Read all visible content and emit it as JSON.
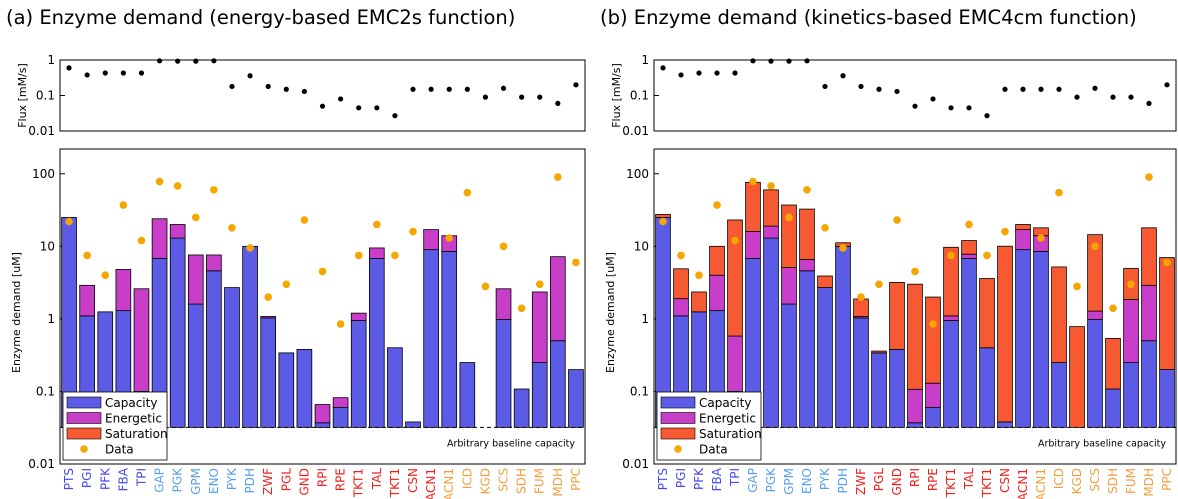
{
  "panels": [
    {
      "title": "(a) Enzyme demand (energy-based EMC2s function)"
    },
    {
      "title": "(b) Enzyme demand (kinetics-based EMC4cm function)"
    }
  ],
  "colors": {
    "capacity": "#5b5be6",
    "energetic": "#c83ec8",
    "saturation": "#f75a32",
    "data": "#f5a700",
    "label_blue": "#4a4ae8",
    "label_lightblue": "#5aa0ee",
    "label_red": "#ee2222",
    "label_orange": "#f0a040"
  },
  "flux_axis": {
    "ylabel": "Flux [mM/s]",
    "ticks": [
      "1",
      "0.1",
      "0.01"
    ]
  },
  "demand_axis": {
    "ylabel": "Enzyme demand [uM]",
    "ticks": [
      "100",
      "10",
      "1",
      "0.1",
      "0.01"
    ]
  },
  "legend": [
    "Capacity",
    "Energetic",
    "Saturation",
    "Data"
  ],
  "baseline_label": "Arbitrary baseline capacity",
  "chart_data": [
    {
      "type": "bar",
      "title": "(a) Enzyme demand (energy-based EMC2s function)",
      "yscale": "log",
      "ylim": [
        0.01,
        150
      ],
      "ylabel": "Enzyme demand [uM]",
      "baseline": 0.032,
      "categories": [
        "PTS",
        "PGI",
        "PFK",
        "FBA",
        "TPI",
        "GAP",
        "PGK",
        "GPM",
        "ENO",
        "PYK",
        "PDH",
        "ZWF",
        "PGL",
        "GND",
        "RPI",
        "RPE",
        "TKT1",
        "TAL",
        "TKT1",
        "CSN",
        "ACN1",
        "ACN1",
        "ICD",
        "KGD",
        "SCS",
        "SDH",
        "FUM",
        "MDH",
        "PPC"
      ],
      "category_groups": [
        "blue",
        "blue",
        "blue",
        "blue",
        "blue",
        "lightblue",
        "lightblue",
        "lightblue",
        "lightblue",
        "lightblue",
        "lightblue",
        "red",
        "red",
        "red",
        "red",
        "red",
        "red",
        "red",
        "red",
        "red",
        "red",
        "orange",
        "orange",
        "orange",
        "orange",
        "orange",
        "orange",
        "orange",
        "orange"
      ],
      "series": [
        {
          "name": "Capacity",
          "values": [
            25,
            1.1,
            1.25,
            1.3,
            0.1,
            6.8,
            13,
            1.6,
            4.6,
            2.7,
            10,
            1.03,
            0.34,
            0.38,
            0.037,
            0.06,
            0.95,
            6.8,
            0.4,
            0.038,
            9,
            8.5,
            0.25,
            null,
            0.98,
            0.108,
            0.25,
            0.5,
            0.2
          ]
        },
        {
          "name": "Energetic",
          "values": [
            0,
            1.8,
            0,
            3.5,
            2.5,
            17.2,
            7,
            6,
            3,
            0,
            0,
            0.05,
            0,
            0,
            0.029,
            0.022,
            0.25,
            2.7,
            0,
            0,
            8,
            5.5,
            0,
            null,
            1.62,
            0,
            2.1,
            6.7,
            0
          ]
        },
        {
          "name": "Saturation",
          "values": [
            0,
            0,
            0,
            0,
            0,
            0,
            0,
            0,
            0,
            0,
            0,
            0,
            0,
            0,
            0,
            0,
            0,
            0,
            0,
            0,
            0,
            0,
            0,
            null,
            0,
            0,
            0,
            0,
            0
          ]
        }
      ],
      "data_points": [
        22,
        7.5,
        4,
        37,
        12,
        78,
        68,
        25,
        60,
        18,
        9.5,
        2,
        3,
        23,
        4.5,
        0.85,
        7.5,
        20,
        7.5,
        16,
        null,
        13,
        55,
        2.8,
        10,
        1.4,
        3,
        90,
        6
      ],
      "flux": {
        "ylabel": "Flux [mM/s]",
        "yscale": "log",
        "ylim": [
          0.01,
          1
        ],
        "values": [
          0.6,
          0.38,
          0.43,
          0.43,
          0.43,
          0.95,
          0.93,
          0.93,
          0.95,
          0.18,
          0.36,
          0.18,
          0.15,
          0.13,
          0.05,
          0.08,
          0.045,
          0.045,
          0.027,
          0.15,
          0.15,
          0.15,
          0.15,
          0.09,
          0.16,
          0.09,
          0.09,
          0.06,
          0.2
        ]
      }
    },
    {
      "type": "bar",
      "title": "(b) Enzyme demand (kinetics-based EMC4cm function)",
      "yscale": "log",
      "ylim": [
        0.01,
        150
      ],
      "ylabel": "Enzyme demand [uM]",
      "baseline": 0.032,
      "categories": [
        "PTS",
        "PGI",
        "PFK",
        "FBA",
        "TPI",
        "GAP",
        "PGK",
        "GPM",
        "ENO",
        "PYK",
        "PDH",
        "ZWF",
        "PGL",
        "GND",
        "RPI",
        "RPE",
        "TKT1",
        "TAL",
        "TKT1",
        "CSN",
        "ACN1",
        "ACN1",
        "ICD",
        "KGD",
        "SCS",
        "SDH",
        "FUM",
        "MDH",
        "PPC"
      ],
      "category_groups": [
        "blue",
        "blue",
        "blue",
        "blue",
        "blue",
        "lightblue",
        "lightblue",
        "lightblue",
        "lightblue",
        "lightblue",
        "lightblue",
        "red",
        "red",
        "red",
        "red",
        "red",
        "red",
        "red",
        "red",
        "red",
        "red",
        "orange",
        "orange",
        "orange",
        "orange",
        "orange",
        "orange",
        "orange",
        "orange"
      ],
      "series": [
        {
          "name": "Capacity",
          "values": [
            25,
            1.1,
            1.25,
            1.3,
            0.1,
            6.8,
            13,
            1.6,
            4.6,
            2.7,
            10,
            1.03,
            0.34,
            0.38,
            0.037,
            0.06,
            0.95,
            6.8,
            0.4,
            0.038,
            9,
            8.5,
            0.25,
            0.032,
            0.98,
            0.108,
            0.25,
            0.5,
            0.2
          ]
        },
        {
          "name": "Energetic",
          "values": [
            0,
            0.8,
            0,
            2.7,
            0.48,
            9.2,
            6,
            3.5,
            2,
            0,
            0,
            0.05,
            0,
            0,
            0.07,
            0.07,
            0.15,
            1,
            0,
            0,
            8,
            5.5,
            0,
            0,
            0.3,
            0,
            1.6,
            2.4,
            0
          ]
        },
        {
          "name": "Saturation",
          "values": [
            2.5,
            3,
            1.1,
            6,
            22.5,
            60,
            41,
            32,
            26,
            1.2,
            1.2,
            0.8,
            0.02,
            2.8,
            2.9,
            1.87,
            8.6,
            4.2,
            3.2,
            10,
            3,
            4,
            4.95,
            0.75,
            13.2,
            0.43,
            3.1,
            15.1,
            6.8
          ]
        }
      ],
      "data_points": [
        22,
        7.5,
        4,
        37,
        12,
        78,
        68,
        25,
        60,
        18,
        9.5,
        2,
        3,
        23,
        4.5,
        0.85,
        7.5,
        20,
        7.5,
        16,
        null,
        13,
        55,
        2.8,
        10,
        1.4,
        3,
        90,
        6
      ],
      "flux": {
        "ylabel": "Flux [mM/s]",
        "yscale": "log",
        "ylim": [
          0.01,
          1
        ],
        "values": [
          0.6,
          0.38,
          0.43,
          0.43,
          0.43,
          0.95,
          0.93,
          0.93,
          0.95,
          0.18,
          0.36,
          0.18,
          0.15,
          0.13,
          0.05,
          0.08,
          0.045,
          0.045,
          0.027,
          0.15,
          0.15,
          0.15,
          0.15,
          0.09,
          0.16,
          0.09,
          0.09,
          0.06,
          0.2
        ]
      }
    }
  ]
}
